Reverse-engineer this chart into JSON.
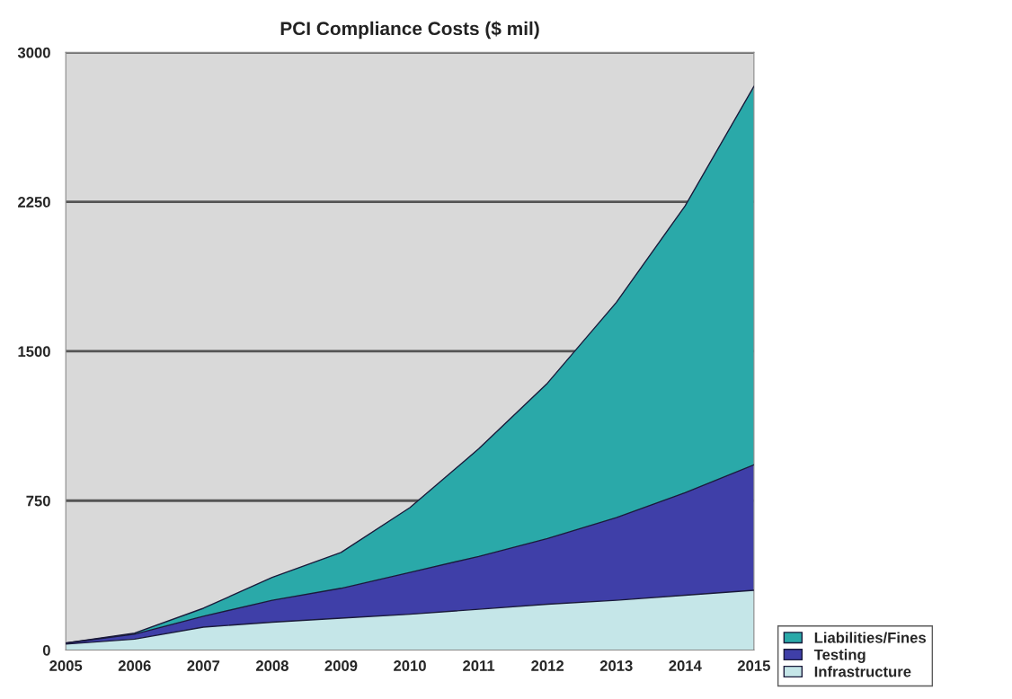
{
  "chart_data": {
    "type": "area",
    "title": "PCI Compliance Costs ($ mil)",
    "stacked": true,
    "x": [
      2005,
      2006,
      2007,
      2008,
      2009,
      2010,
      2011,
      2012,
      2013,
      2014,
      2015
    ],
    "series": [
      {
        "name": "Infrastructure",
        "color": "#c5e6e8",
        "values": [
          30,
          55,
          115,
          140,
          160,
          180,
          205,
          230,
          250,
          275,
          300
        ]
      },
      {
        "name": "Testing",
        "color": "#3f3fa8",
        "values": [
          5,
          25,
          55,
          110,
          150,
          210,
          265,
          330,
          415,
          515,
          630
        ]
      },
      {
        "name": "Liabilities/Fines",
        "color": "#2aa9a9",
        "values": [
          0,
          5,
          40,
          115,
          180,
          325,
          540,
          780,
          1080,
          1440,
          1900
        ]
      }
    ],
    "xlim": [
      2005,
      2015
    ],
    "xticks": [
      2005,
      2006,
      2007,
      2008,
      2009,
      2010,
      2011,
      2012,
      2013,
      2014,
      2015
    ],
    "ylim": [
      0,
      3000
    ],
    "yticks": [
      0,
      750,
      1500,
      2250,
      3000
    ],
    "grid": "y",
    "legend": "bottom right"
  }
}
